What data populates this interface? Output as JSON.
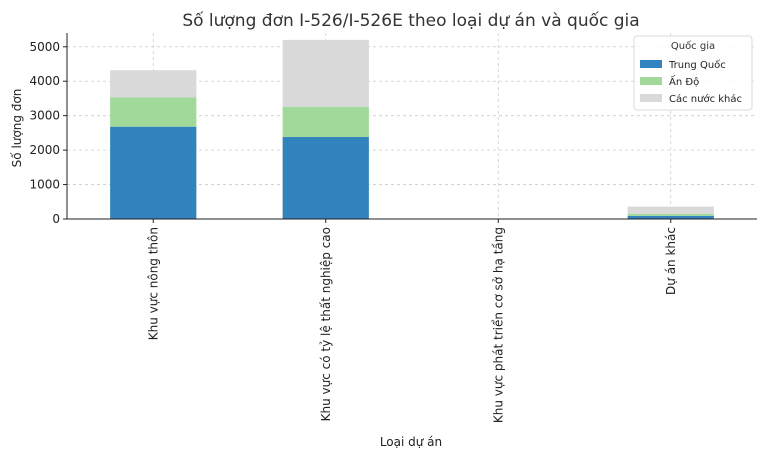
{
  "chart_data": {
    "type": "bar",
    "stacked": true,
    "title": "Số lượng đơn I-526/I-526E theo loại dự án và quốc gia",
    "xlabel": "Loại dự án",
    "ylabel": "Số lượng đơn",
    "categories": [
      "Khu vực nông thôn",
      "Khu vực có tỷ lệ thất nghiệp cao",
      "Khu vực phát triển cơ sở hạ tầng",
      "Dự án khác"
    ],
    "series": [
      {
        "name": "Trung Quốc",
        "color": "#3182bd",
        "values": [
          2680,
          2380,
          0,
          90
        ]
      },
      {
        "name": "Ấn Độ",
        "color": "#a1d99b",
        "values": [
          850,
          880,
          0,
          60
        ]
      },
      {
        "name": "Các nước khác",
        "color": "#d9d9d9",
        "values": [
          790,
          1940,
          0,
          210
        ]
      }
    ],
    "ylim": [
      0,
      5400
    ],
    "yticks": [
      0,
      1000,
      2000,
      3000,
      4000,
      5000
    ],
    "grid": true,
    "legend": {
      "title": "Quốc gia",
      "placement": "top-right"
    }
  }
}
